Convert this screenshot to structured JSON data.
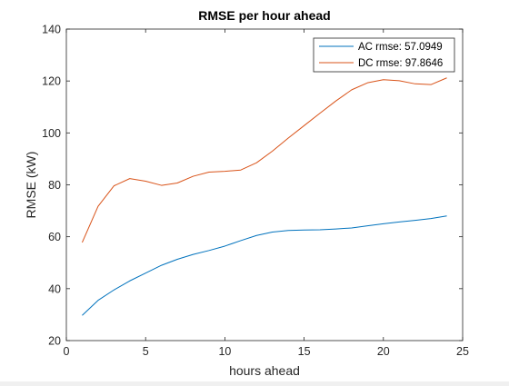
{
  "chart_data": {
    "type": "line",
    "title": "RMSE per hour ahead",
    "xlabel": "hours ahead",
    "ylabel": "RMSE (kW)",
    "xlim": [
      0,
      25
    ],
    "ylim": [
      20,
      140
    ],
    "xticks": [
      0,
      5,
      10,
      15,
      20,
      25
    ],
    "yticks": [
      20,
      40,
      60,
      80,
      100,
      120,
      140
    ],
    "grid": false,
    "legend_location": "top-right",
    "x": [
      1,
      2,
      3,
      4,
      5,
      6,
      7,
      8,
      9,
      10,
      11,
      12,
      13,
      14,
      15,
      16,
      17,
      18,
      19,
      20,
      21,
      22,
      23,
      24
    ],
    "series": [
      {
        "name": "AC rmse: 57.0949",
        "color": "#0072bd",
        "values": [
          29.7,
          35.5,
          39.5,
          43.0,
          46.0,
          49.0,
          51.3,
          53.2,
          54.7,
          56.4,
          58.5,
          60.5,
          61.8,
          62.4,
          62.6,
          62.7,
          63.0,
          63.4,
          64.2,
          65.0,
          65.7,
          66.3,
          67.0,
          68.0
        ]
      },
      {
        "name": "DC rmse: 97.8646",
        "color": "#d95319",
        "values": [
          57.8,
          71.7,
          79.6,
          82.4,
          81.4,
          79.8,
          80.7,
          83.3,
          84.9,
          85.2,
          85.7,
          88.5,
          93.0,
          98.0,
          102.8,
          107.6,
          112.3,
          116.6,
          119.3,
          120.5,
          120.1,
          118.9,
          118.6,
          121.2
        ]
      }
    ]
  }
}
